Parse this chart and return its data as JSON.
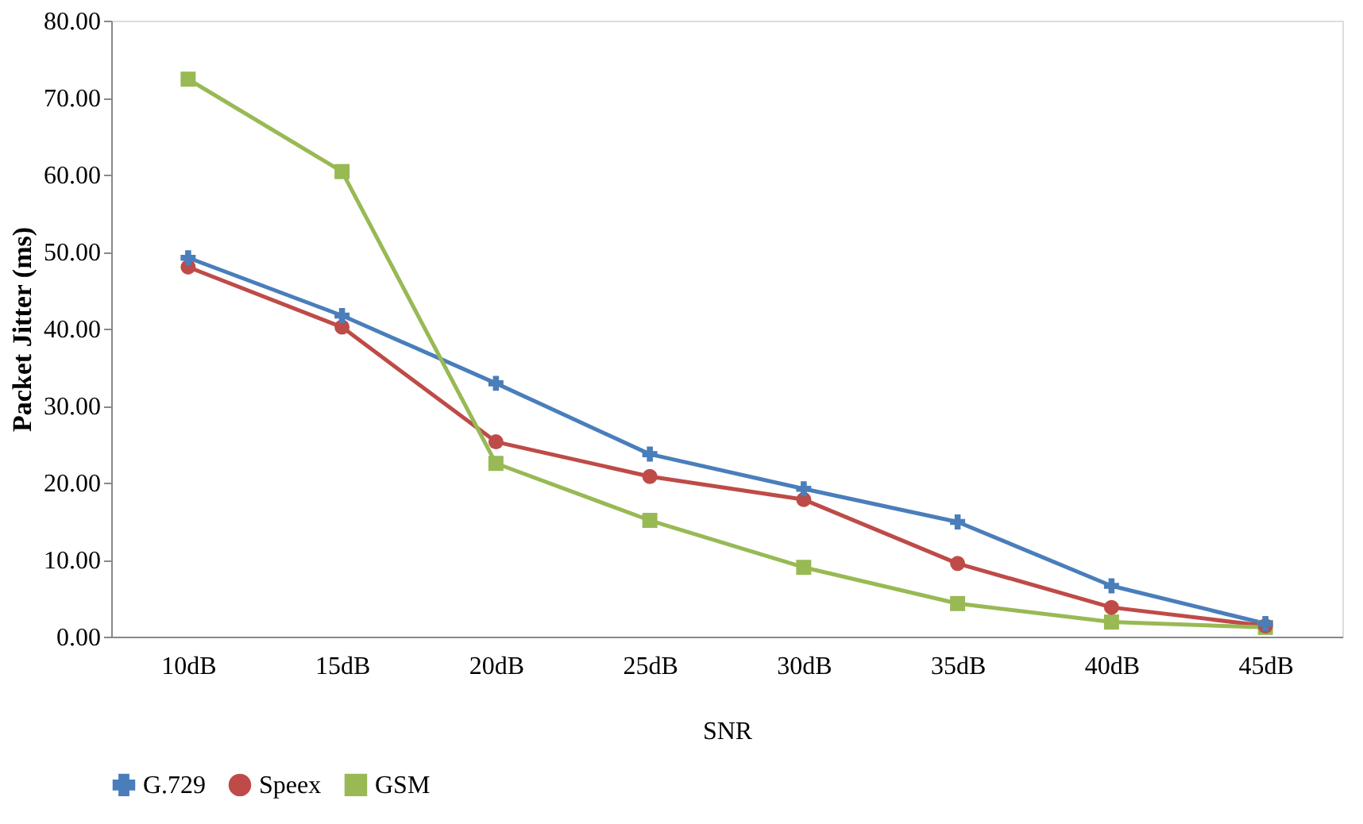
{
  "chart_data": {
    "type": "line",
    "xlabel": "SNR",
    "ylabel": "Packet Jitter (ms)",
    "categories": [
      "10dB",
      "15dB",
      "20dB",
      "25dB",
      "30dB",
      "35dB",
      "40dB",
      "45dB"
    ],
    "series": [
      {
        "name": "G.729",
        "color": "#4a7ebb",
        "marker": "cross",
        "values": [
          49.2,
          41.7,
          32.9,
          23.7,
          19.2,
          14.9,
          6.6,
          1.7
        ]
      },
      {
        "name": "Speex",
        "color": "#be4b48",
        "marker": "circle",
        "values": [
          48.0,
          40.2,
          25.3,
          20.8,
          17.8,
          9.5,
          3.8,
          1.4
        ]
      },
      {
        "name": "GSM",
        "color": "#98b954",
        "marker": "square",
        "values": [
          72.4,
          60.4,
          22.5,
          15.1,
          9.0,
          4.3,
          1.9,
          1.2
        ]
      }
    ],
    "ylim": [
      0,
      80
    ],
    "yticks": [
      {
        "value": 0,
        "label": "0.00"
      },
      {
        "value": 10,
        "label": "10.00"
      },
      {
        "value": 20,
        "label": "20.00"
      },
      {
        "value": 30,
        "label": "30.00"
      },
      {
        "value": 40,
        "label": "40.00"
      },
      {
        "value": 50,
        "label": "50.00"
      },
      {
        "value": 60,
        "label": "60.00"
      },
      {
        "value": 70,
        "label": "70.00"
      },
      {
        "value": 80,
        "label": "80.00"
      }
    ],
    "grid": false,
    "legend": "bottom",
    "line_style": "solid"
  }
}
